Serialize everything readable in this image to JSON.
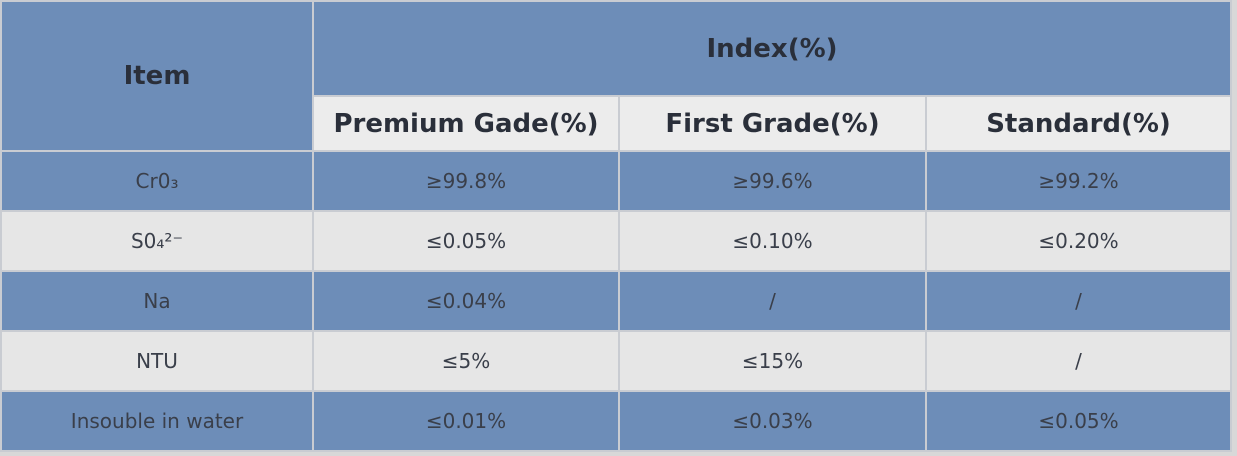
{
  "table": {
    "item_header": "Item",
    "group_header": "Index(%)",
    "columns": [
      "Premium Gade(%)",
      "First Grade(%)",
      "Standard(%)"
    ],
    "rows": [
      [
        "Cr0₃",
        "≥99.8%",
        "≥99.6%",
        "≥99.2%"
      ],
      [
        "S0₄²⁻",
        "≤0.05%",
        "≤0.10%",
        "≤0.20%"
      ],
      [
        "Na",
        "≤0.04%",
        "/",
        "/"
      ],
      [
        "NTU",
        "≤5%",
        "≤15%",
        "/"
      ],
      [
        "Insouble in water",
        "≤0.01%",
        "≤0.03%",
        "≤0.05%"
      ]
    ]
  }
}
